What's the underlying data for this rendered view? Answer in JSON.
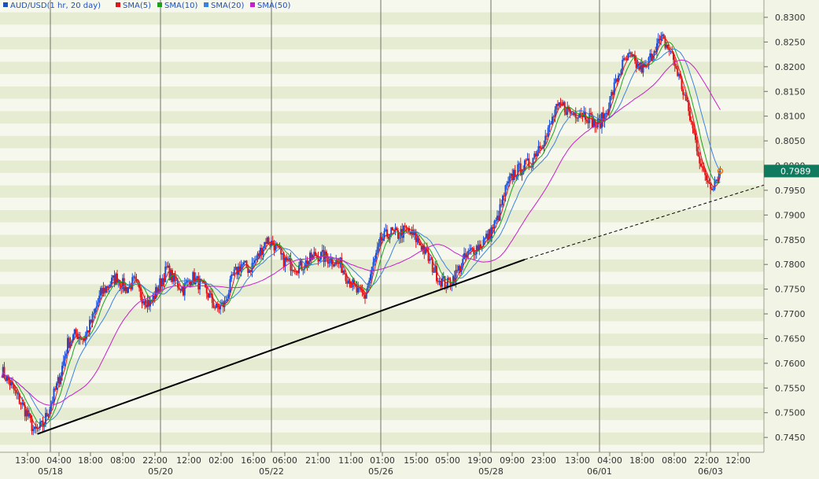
{
  "chart_data": {
    "type": "line",
    "legend": {
      "placement": "top-left",
      "items": [
        {
          "label": "AUD/USD(1 hr, 20 day)",
          "color": "#1e4fbf"
        },
        {
          "label": "SMA(5)",
          "color": "#e0161b"
        },
        {
          "label": "SMA(10)",
          "color": "#1aa31a"
        },
        {
          "label": "SMA(20)",
          "color": "#3b82e0"
        },
        {
          "label": "SMA(50)",
          "color": "#c81ecb"
        }
      ]
    },
    "y_axis": {
      "position": "right",
      "ylim": [
        0.742,
        0.8335
      ],
      "ticks": [
        "0.8300",
        "0.8250",
        "0.8200",
        "0.8150",
        "0.8100",
        "0.8050",
        "0.8000",
        "0.7950",
        "0.7900",
        "0.7850",
        "0.7800",
        "0.7750",
        "0.7700",
        "0.7650",
        "0.7600",
        "0.7550",
        "0.7500",
        "0.7450"
      ]
    },
    "x_axis": {
      "time_labels": [
        "13:00",
        "04:00",
        "18:00",
        "08:00",
        "22:00",
        "12:00",
        "02:00",
        "16:00",
        "06:00",
        "21:00",
        "11:00",
        "01:00",
        "15:00",
        "05:00",
        "19:00",
        "09:00",
        "23:00",
        "13:00",
        "04:00",
        "18:00",
        "08:00",
        "22:00",
        "12:00"
      ],
      "date_labels": [
        "05/18",
        "05/20",
        "05/22",
        "05/26",
        "05/28",
        "06/01",
        "06/03"
      ]
    },
    "last_price": {
      "label": "0.7989",
      "value": 0.7989,
      "color": "#0f7a5e"
    },
    "colors": {
      "up_candle": "#1c4fd8",
      "down_candle": "#e01414",
      "sma5": "#e0161b",
      "sma10": "#1aa31a",
      "sma20": "#3b82e0",
      "sma50": "#c81ecb",
      "trendline": "#000000"
    },
    "price_path": [
      [
        0,
        0.7585
      ],
      [
        6,
        0.756
      ],
      [
        12,
        0.753
      ],
      [
        18,
        0.75
      ],
      [
        24,
        0.746
      ],
      [
        30,
        0.7475
      ],
      [
        36,
        0.752
      ],
      [
        42,
        0.757
      ],
      [
        48,
        0.764
      ],
      [
        54,
        0.766
      ],
      [
        60,
        0.765
      ],
      [
        66,
        0.769
      ],
      [
        72,
        0.774
      ],
      [
        78,
        0.776
      ],
      [
        84,
        0.7775
      ],
      [
        90,
        0.775
      ],
      [
        96,
        0.7765
      ],
      [
        102,
        0.7735
      ],
      [
        108,
        0.772
      ],
      [
        114,
        0.7755
      ],
      [
        120,
        0.779
      ],
      [
        126,
        0.7765
      ],
      [
        132,
        0.775
      ],
      [
        138,
        0.7775
      ],
      [
        144,
        0.776
      ],
      [
        150,
        0.774
      ],
      [
        156,
        0.771
      ],
      [
        162,
        0.772
      ],
      [
        168,
        0.7775
      ],
      [
        174,
        0.78
      ],
      [
        180,
        0.779
      ],
      [
        186,
        0.7815
      ],
      [
        192,
        0.785
      ],
      [
        198,
        0.784
      ],
      [
        204,
        0.781
      ],
      [
        210,
        0.78
      ],
      [
        216,
        0.7795
      ],
      [
        222,
        0.7805
      ],
      [
        228,
        0.782
      ],
      [
        234,
        0.7815
      ],
      [
        240,
        0.781
      ],
      [
        246,
        0.78
      ],
      [
        252,
        0.777
      ],
      [
        258,
        0.7745
      ],
      [
        264,
        0.7735
      ],
      [
        270,
        0.78
      ],
      [
        276,
        0.785
      ],
      [
        282,
        0.7865
      ],
      [
        288,
        0.786
      ],
      [
        294,
        0.787
      ],
      [
        300,
        0.7855
      ],
      [
        306,
        0.7835
      ],
      [
        312,
        0.78
      ],
      [
        318,
        0.777
      ],
      [
        324,
        0.776
      ],
      [
        330,
        0.778
      ],
      [
        336,
        0.781
      ],
      [
        342,
        0.783
      ],
      [
        348,
        0.784
      ],
      [
        354,
        0.786
      ],
      [
        360,
        0.789
      ],
      [
        366,
        0.795
      ],
      [
        372,
        0.7985
      ],
      [
        378,
        0.7995
      ],
      [
        384,
        0.8005
      ],
      [
        390,
        0.804
      ],
      [
        396,
        0.806
      ],
      [
        402,
        0.811
      ],
      [
        408,
        0.812
      ],
      [
        414,
        0.8105
      ],
      [
        420,
        0.811
      ],
      [
        426,
        0.81
      ],
      [
        432,
        0.808
      ],
      [
        438,
        0.81
      ],
      [
        444,
        0.815
      ],
      [
        450,
        0.82
      ],
      [
        456,
        0.822
      ],
      [
        462,
        0.82
      ],
      [
        468,
        0.8195
      ],
      [
        474,
        0.824
      ],
      [
        480,
        0.8255
      ],
      [
        486,
        0.823
      ],
      [
        492,
        0.818
      ],
      [
        498,
        0.812
      ],
      [
        504,
        0.805
      ],
      [
        510,
        0.798
      ],
      [
        516,
        0.796
      ],
      [
        522,
        0.799
      ]
    ],
    "trendline": {
      "start": [
        26,
        0.7457
      ],
      "solid_end": [
        380,
        0.781
      ],
      "end": [
        530,
        0.794
      ]
    }
  }
}
